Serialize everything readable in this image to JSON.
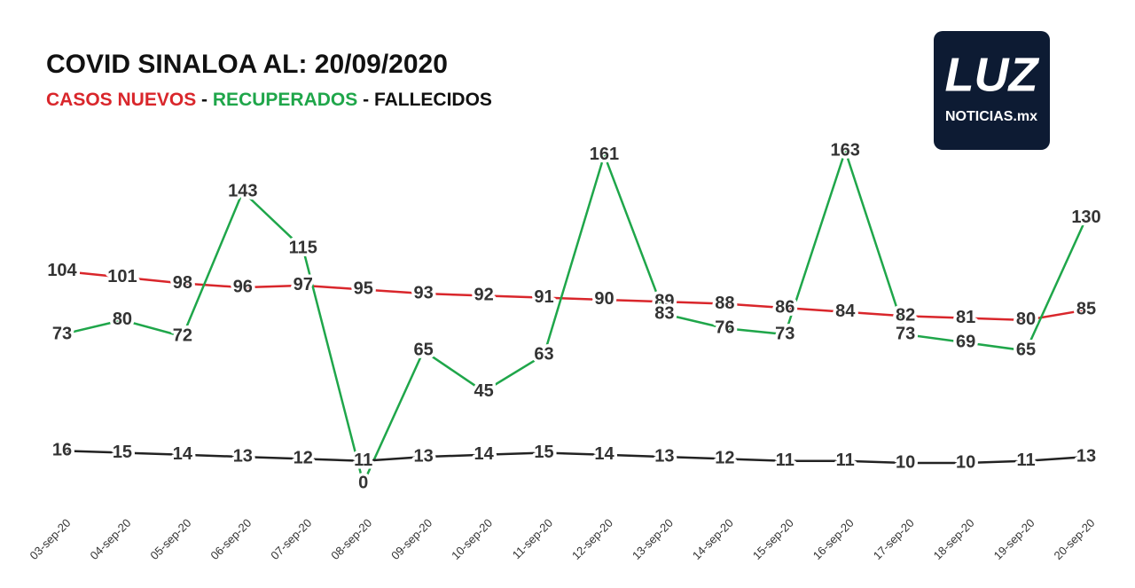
{
  "chart_data": {
    "type": "line",
    "title": "COVID SINALOA AL: 20/09/2020",
    "separator": "-",
    "categories": [
      "03-sep-20",
      "04-sep-20",
      "05-sep-20",
      "06-sep-20",
      "07-sep-20",
      "08-sep-20",
      "09-sep-20",
      "10-sep-20",
      "11-sep-20",
      "12-sep-20",
      "13-sep-20",
      "14-sep-20",
      "15-sep-20",
      "16-sep-20",
      "17-sep-20",
      "18-sep-20",
      "19-sep-20",
      "20-sep-20"
    ],
    "series": [
      {
        "name": "CASOS NUEVOS",
        "color": "#d9262b",
        "values": [
          104,
          101,
          98,
          96,
          97,
          95,
          93,
          92,
          91,
          90,
          89,
          88,
          86,
          84,
          82,
          81,
          80,
          85
        ]
      },
      {
        "name": "RECUPERADOS",
        "color": "#1fa64a",
        "values": [
          73,
          80,
          72,
          143,
          115,
          0,
          65,
          45,
          63,
          161,
          83,
          76,
          73,
          163,
          73,
          69,
          65,
          130
        ]
      },
      {
        "name": "FALLECIDOS",
        "color": "#222222",
        "values": [
          16,
          15,
          14,
          13,
          12,
          11,
          13,
          14,
          15,
          14,
          13,
          12,
          11,
          11,
          10,
          10,
          11,
          13
        ]
      }
    ]
  },
  "logo": {
    "brand": "LUZ",
    "tagline": "NOTICIAS.mx"
  }
}
